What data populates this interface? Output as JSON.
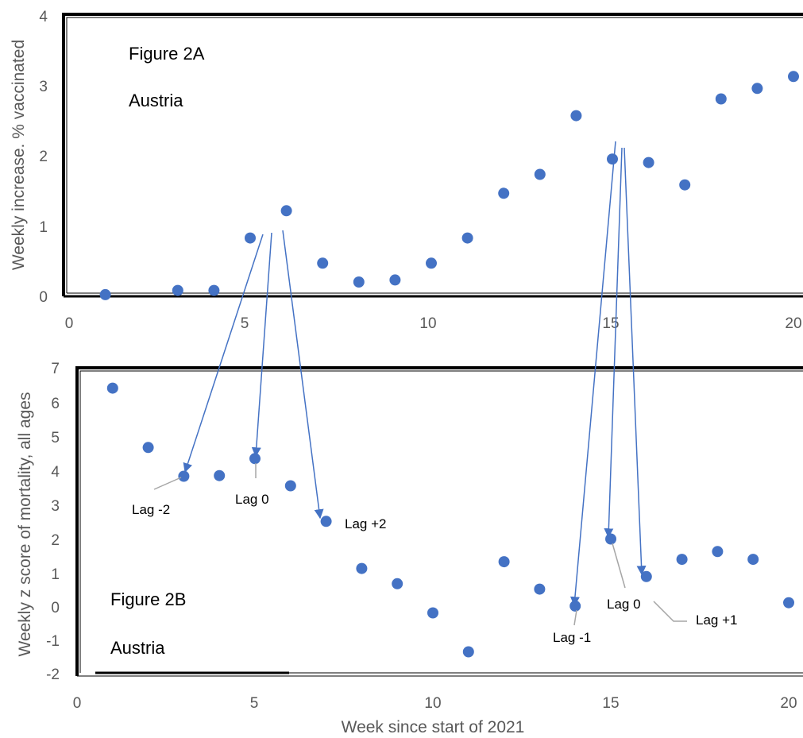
{
  "chart_data": [
    {
      "type": "scatter",
      "panel_title": "Figure 2A",
      "panel_subtitle": "Austria",
      "ylabel": "Weekly increase. % vaccinated",
      "xlabel": "",
      "xlim": [
        0,
        20
      ],
      "ylim": [
        0,
        4
      ],
      "xticks": [
        "0",
        "5",
        "10",
        "15",
        "20"
      ],
      "yticks": [
        "0",
        "1",
        "2",
        "3",
        "4"
      ],
      "x": [
        1,
        3,
        4,
        5,
        6,
        7,
        8,
        9,
        10,
        11,
        12,
        13,
        14,
        15,
        16,
        17,
        18,
        19,
        20
      ],
      "y": [
        -0.01,
        0.05,
        0.05,
        0.8,
        1.19,
        0.44,
        0.17,
        0.2,
        0.44,
        0.8,
        1.44,
        1.71,
        2.55,
        1.93,
        1.88,
        1.56,
        2.79,
        2.94,
        3.11
      ],
      "grid": false
    },
    {
      "type": "scatter",
      "panel_title": "Figure 2B",
      "panel_subtitle": "Austria",
      "ylabel": "Weekly z score of mortality, all ages",
      "xlabel": "Week since start of 2021",
      "xlim": [
        0,
        20
      ],
      "ylim": [
        -2,
        7
      ],
      "xticks": [
        "0",
        "5",
        "10",
        "15",
        "20"
      ],
      "yticks": [
        "-2",
        "-1",
        "0",
        "1",
        "2",
        "3",
        "4",
        "5",
        "6",
        "7"
      ],
      "x": [
        1,
        2,
        3,
        4,
        5,
        6,
        7,
        8,
        9,
        10,
        11,
        12,
        13,
        14,
        15,
        16,
        17,
        18,
        19,
        20
      ],
      "y": [
        6.4,
        4.65,
        3.8,
        3.82,
        4.32,
        3.52,
        2.47,
        1.08,
        0.63,
        -0.23,
        -1.38,
        1.28,
        0.47,
        -0.03,
        1.95,
        0.84,
        1.35,
        1.58,
        1.35,
        0.07
      ],
      "grid": false,
      "annotations": [
        "Lag -2",
        "Lag 0",
        "Lag +2",
        "Lag -1",
        "Lag 0",
        "Lag +1"
      ]
    }
  ],
  "colors": {
    "marker": "#4472C4",
    "arrow": "#4472C4",
    "callout": "#A6A6A6",
    "frame": "#000000"
  }
}
